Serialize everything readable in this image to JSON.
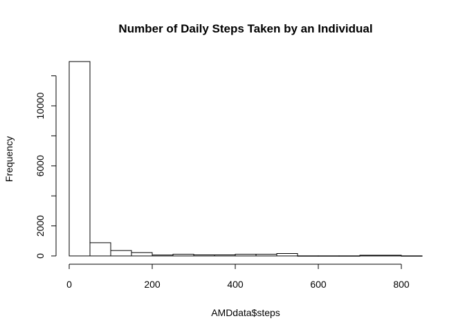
{
  "chart_data": {
    "type": "bar",
    "title": "Number of Daily Steps Taken by an Individual",
    "xlabel": "AMDdata$steps",
    "ylabel": "Frequency",
    "bin_width": 50,
    "bins": [
      {
        "start": 0,
        "end": 50,
        "value": 12950
      },
      {
        "start": 50,
        "end": 100,
        "value": 880
      },
      {
        "start": 100,
        "end": 150,
        "value": 360
      },
      {
        "start": 150,
        "end": 200,
        "value": 220
      },
      {
        "start": 200,
        "end": 250,
        "value": 60
      },
      {
        "start": 250,
        "end": 300,
        "value": 110
      },
      {
        "start": 300,
        "end": 350,
        "value": 70
      },
      {
        "start": 350,
        "end": 400,
        "value": 70
      },
      {
        "start": 400,
        "end": 450,
        "value": 110
      },
      {
        "start": 450,
        "end": 500,
        "value": 110
      },
      {
        "start": 500,
        "end": 550,
        "value": 160
      },
      {
        "start": 550,
        "end": 600,
        "value": 5
      },
      {
        "start": 600,
        "end": 650,
        "value": 5
      },
      {
        "start": 650,
        "end": 700,
        "value": 5
      },
      {
        "start": 700,
        "end": 750,
        "value": 45
      },
      {
        "start": 750,
        "end": 800,
        "value": 45
      },
      {
        "start": 800,
        "end": 850,
        "value": 5
      }
    ],
    "xlim": [
      0,
      850
    ],
    "ylim": [
      0,
      12950
    ],
    "x_ticks": [
      0,
      200,
      400,
      600,
      800
    ],
    "y_ticks": [
      0,
      2000,
      6000,
      10000
    ],
    "grid": false,
    "legend": "none"
  }
}
